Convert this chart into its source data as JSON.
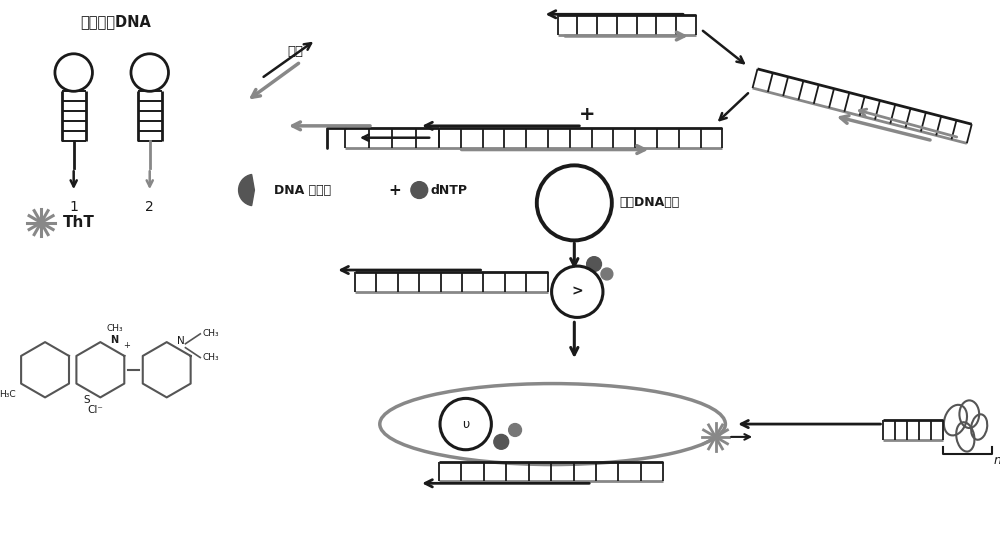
{
  "bg": "#ffffff",
  "bk": "#1a1a1a",
  "gr": "#888888",
  "mg": "#555555",
  "fw": 10.0,
  "fh": 5.44,
  "hairpin_title": "发卡结构DNA",
  "lbl1": "1",
  "lbl2": "2",
  "target_txt": "靶标",
  "enzyme_txt": "DNA 聚合酶",
  "dNTP_txt": "dNTP",
  "circular_txt": "环状DNA探针",
  "ThT_txt": "ThT",
  "n_txt": "n",
  "plus_txt": "+"
}
